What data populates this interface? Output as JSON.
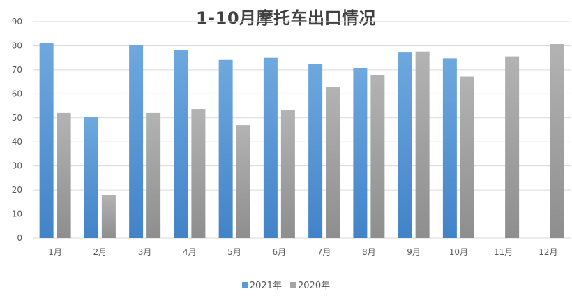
{
  "chart_data": {
    "type": "bar",
    "title": "1-10月摩托车出口情况",
    "categories": [
      "1月",
      "2月",
      "3月",
      "4月",
      "5月",
      "6月",
      "7月",
      "8月",
      "9月",
      "10月",
      "11月",
      "12月"
    ],
    "series": [
      {
        "name": "2021年",
        "color": "#5b9bd5",
        "values": [
          81,
          50.5,
          80.2,
          78.4,
          74.1,
          75,
          72.3,
          70.6,
          77.2,
          74.8,
          null,
          null
        ]
      },
      {
        "name": "2020年",
        "color": "#a5a5a5",
        "values": [
          52,
          17.8,
          52,
          53.7,
          47,
          53.2,
          63,
          67.8,
          77.6,
          67.2,
          75.6,
          80.7
        ]
      }
    ],
    "yticks": [
      "0",
      "10",
      "20",
      "30",
      "40",
      "50",
      "60",
      "70",
      "80",
      "90"
    ],
    "ylim": [
      0,
      90
    ],
    "grid": true,
    "legend_position": "bottom"
  }
}
